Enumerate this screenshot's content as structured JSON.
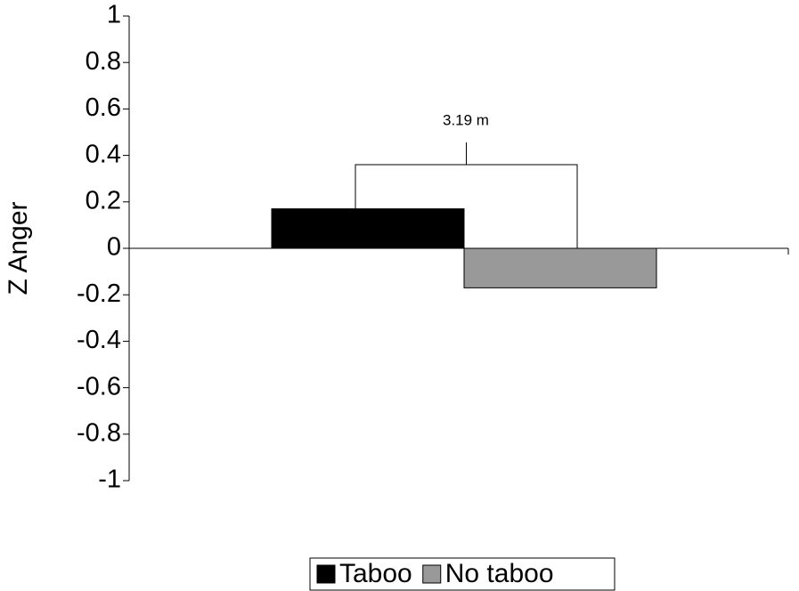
{
  "chart_data": {
    "type": "bar",
    "y_label": "Z Anger",
    "categories": [
      null
    ],
    "series": [
      {
        "name": "Taboo",
        "color": "#000000",
        "values": [
          0.17
        ]
      },
      {
        "name": "No taboo",
        "color": "#999999",
        "values": [
          -0.17
        ]
      }
    ],
    "annotation": "3.19 m",
    "ylim": [
      -1,
      1
    ],
    "yticks": [
      -1,
      -0.8,
      -0.6,
      -0.4,
      -0.2,
      0,
      0.2,
      0.4,
      0.6,
      0.8,
      1
    ],
    "grid": false,
    "legend": "bottom"
  }
}
